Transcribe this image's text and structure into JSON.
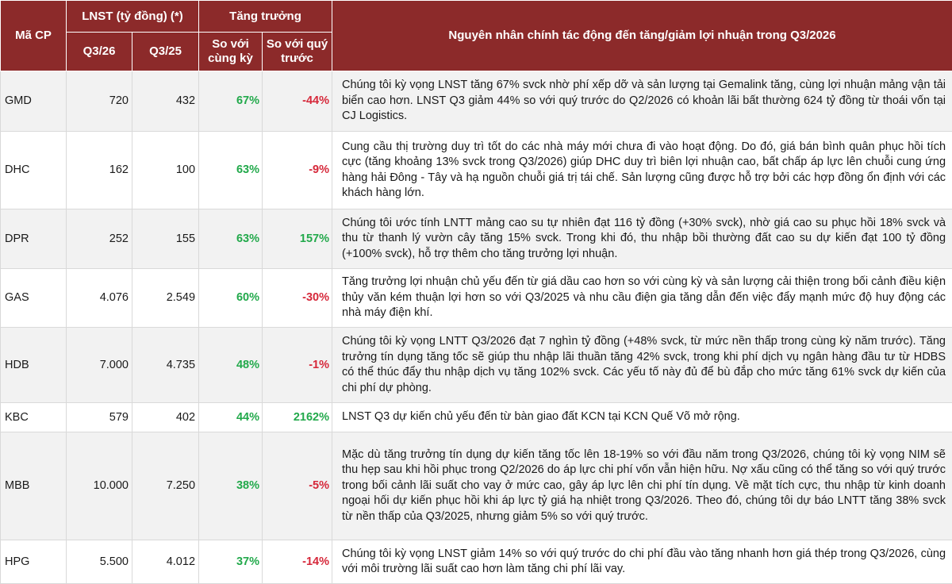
{
  "colors": {
    "header_bg": "#8c2a2a",
    "positive": "#22a94b",
    "negative": "#d6283a",
    "row_alt_bg": "#f2f2f2"
  },
  "header": {
    "ticker": "Mã CP",
    "lnst": "LNST (tỷ đồng) (*)",
    "growth": "Tăng trưởng",
    "reason": "Nguyên nhân chính tác động đến tăng/giảm lợi nhuận trong Q3/2026",
    "q3_26": "Q3/26",
    "q3_25": "Q3/25",
    "yoy": "So với cùng kỳ",
    "qoq": "So với quý trước"
  },
  "rows": [
    {
      "ticker": "GMD",
      "q3_26": "720",
      "q3_25": "432",
      "yoy": "67%",
      "qoq": "-44%",
      "reason": "Chúng tôi kỳ vọng LNST tăng 67% svck nhờ phí xếp dỡ và sản lượng tại Gemalink tăng, cùng lợi nhuận mảng vận tải biển cao hơn. LNST Q3 giảm 44% so với quý trước do Q2/2026 có khoản lãi bất thường 624 tỷ đồng từ thoái vốn tại CJ Logistics."
    },
    {
      "ticker": "DHC",
      "q3_26": "162",
      "q3_25": "100",
      "yoy": "63%",
      "qoq": "-9%",
      "reason": "Cung cầu thị trường duy trì tốt do các nhà máy mới chưa đi vào hoạt động. Do đó, giá bán bình quân phục hồi tích cực (tăng khoảng 13% svck trong Q3/2026) giúp DHC duy trì biên lợi nhuận cao, bất chấp áp lực lên chuỗi cung ứng hàng hải Đông - Tây và hạ nguồn chuỗi giá trị tái chế. Sản lượng cũng được hỗ trợ bởi các hợp đồng ổn định với các khách hàng lớn."
    },
    {
      "ticker": "DPR",
      "q3_26": "252",
      "q3_25": "155",
      "yoy": "63%",
      "qoq": "157%",
      "reason": "Chúng tôi ước tính LNTT mảng cao su tự nhiên đạt 116 tỷ đồng (+30% svck), nhờ giá cao su phục hồi 18% svck và thu từ thanh lý vườn cây tăng 15% svck. Trong khi đó, thu nhập bồi thường đất cao su dự kiến đạt 100 tỷ đồng (+100% svck), hỗ trợ thêm cho tăng trưởng lợi nhuận."
    },
    {
      "ticker": "GAS",
      "q3_26": "4.076",
      "q3_25": "2.549",
      "yoy": "60%",
      "qoq": "-30%",
      "reason": "Tăng trưởng lợi nhuận chủ yếu đến từ giá dầu cao hơn so với cùng kỳ và sản lượng cải thiện trong bối cảnh điều kiện thủy văn kém thuận lợi hơn so với Q3/2025 và nhu cầu điện gia tăng dẫn đến việc đẩy mạnh mức độ huy động các nhà máy điện khí."
    },
    {
      "ticker": "HDB",
      "q3_26": "7.000",
      "q3_25": "4.735",
      "yoy": "48%",
      "qoq": "-1%",
      "reason": "Chúng tôi kỳ vọng LNTT Q3/2026 đạt 7 nghìn tỷ đồng (+48% svck, từ mức nền thấp trong cùng kỳ năm trước). Tăng trưởng tín dụng tăng tốc sẽ giúp thu nhập lãi thuần tăng 42% svck, trong khi phí dịch vụ ngân hàng đầu tư từ HDBS có thể thúc đẩy thu nhập dịch vụ tăng 102% svck. Các yếu tố này đủ để bù đắp cho mức tăng 61% svck dự kiến của chi phí dự phòng."
    },
    {
      "ticker": "KBC",
      "q3_26": "579",
      "q3_25": "402",
      "yoy": "44%",
      "qoq": "2162%",
      "reason": "LNST Q3 dự kiến chủ yếu đến từ bàn giao đất KCN tại KCN Quế Võ mở rộng."
    },
    {
      "ticker": "MBB",
      "q3_26": "10.000",
      "q3_25": "7.250",
      "yoy": "38%",
      "qoq": "-5%",
      "reason": "Mặc dù tăng trưởng tín dụng dự kiến tăng tốc lên 18-19% so với đầu năm trong Q3/2026, chúng tôi kỳ vọng NIM sẽ thu hẹp sau khi hồi phục trong Q2/2026 do áp lực chi phí vốn vẫn hiện hữu. Nợ xấu cũng có thể tăng so với quý trước trong bối cảnh lãi suất cho vay ở mức cao, gây áp lực lên chi phí tín dụng. Về mặt tích cực, thu nhập từ kinh doanh ngoại hối dự kiến phục hồi khi áp lực tỷ giá hạ nhiệt trong Q3/2026. Theo đó, chúng tôi dự báo LNTT tăng 38% svck từ nền thấp của Q3/2025, nhưng giảm 5% so với quý trước."
    },
    {
      "ticker": "HPG",
      "q3_26": "5.500",
      "q3_25": "4.012",
      "yoy": "37%",
      "qoq": "-14%",
      "reason": "Chúng tôi kỳ vọng LNST giảm 14% so với quý trước do chi phí đầu vào tăng nhanh hơn giá thép trong Q3/2026, cùng với môi trường lãi suất cao hơn làm tăng chi phí lãi vay."
    }
  ]
}
